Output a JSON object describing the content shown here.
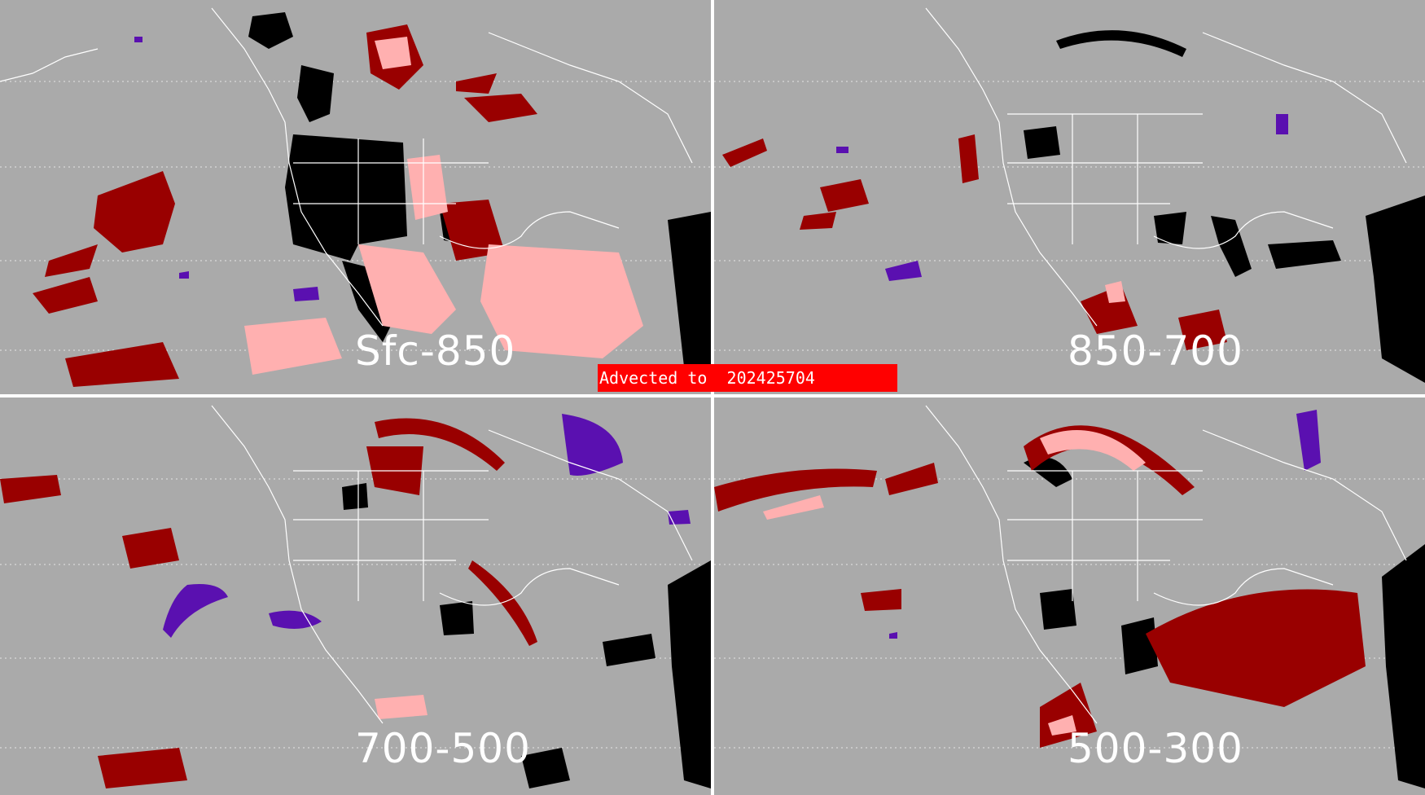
{
  "panels": [
    {
      "id": "sfc-850",
      "label": "Sfc-850"
    },
    {
      "id": "850-700",
      "label": "850-700"
    },
    {
      "id": "700-500",
      "label": "700-500"
    },
    {
      "id": "500-300",
      "label": "500-300"
    }
  ],
  "banner": {
    "text": "Advected to  202425704"
  },
  "colors": {
    "background": "#aaaaaa",
    "coastline": "#ffffff",
    "black_category": "#000000",
    "dark_red_category": "#990000",
    "pink_category": "#ffb0b0",
    "purple_category": "#5a10b0",
    "banner": "#ff0000"
  }
}
